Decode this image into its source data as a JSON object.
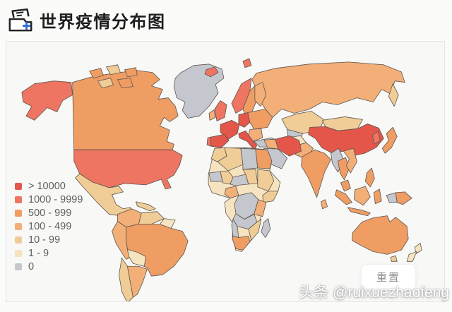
{
  "header": {
    "title": "世界疫情分布图",
    "icon": "archive-plus-icon",
    "icon_accent_color": "#2f6fd6"
  },
  "map_panel": {
    "ocean_color": "#f8f8f6",
    "panel_border_color": "#e6e6e2",
    "country_border_color": "#5b554f",
    "reset_label": "重置"
  },
  "watermark": "头条 @ruixuezhaofeng",
  "chart_data": {
    "type": "choropleth_map",
    "title": "世界疫情分布图",
    "legend_position": "middle-left",
    "bins": [
      {
        "label": "> 10000",
        "color": "#e4564a"
      },
      {
        "label": "1000 - 9999",
        "color": "#ee7561"
      },
      {
        "label": "500 - 999",
        "color": "#f09d64"
      },
      {
        "label": "100 - 499",
        "color": "#f3af78"
      },
      {
        "label": "10 - 99",
        "color": "#f0cd97"
      },
      {
        "label": "1 - 9",
        "color": "#f6e3c0"
      },
      {
        "label": "0",
        "color": "#c5c7cf"
      }
    ],
    "regions": [
      {
        "name": "russia",
        "level": 3
      },
      {
        "name": "kamchatka",
        "level": 4
      },
      {
        "name": "canada",
        "level": 2
      },
      {
        "name": "alaska",
        "level": 1
      },
      {
        "name": "usa",
        "level": 1
      },
      {
        "name": "greenland",
        "level": 6
      },
      {
        "name": "arctic_island_1",
        "level": 2
      },
      {
        "name": "arctic_island_2",
        "level": 4
      },
      {
        "name": "arctic_island_3",
        "level": 2
      },
      {
        "name": "arctic_island_4",
        "level": 4
      },
      {
        "name": "arctic_island_5",
        "level": 2
      },
      {
        "name": "iceland",
        "level": 1
      },
      {
        "name": "svalbard",
        "level": 1
      },
      {
        "name": "mexico",
        "level": 4
      },
      {
        "name": "central_america",
        "level": 4
      },
      {
        "name": "cuba",
        "level": 4
      },
      {
        "name": "colombia",
        "level": 3
      },
      {
        "name": "venezuela",
        "level": 4
      },
      {
        "name": "guyanas",
        "level": 5
      },
      {
        "name": "brazil",
        "level": 2
      },
      {
        "name": "peru",
        "level": 3
      },
      {
        "name": "bolivia",
        "level": 5
      },
      {
        "name": "chile",
        "level": 4
      },
      {
        "name": "argentina",
        "level": 3
      },
      {
        "name": "norway",
        "level": 1
      },
      {
        "name": "sweden",
        "level": 2
      },
      {
        "name": "finland",
        "level": 3
      },
      {
        "name": "uk",
        "level": 1
      },
      {
        "name": "ireland",
        "level": 3
      },
      {
        "name": "france",
        "level": 0
      },
      {
        "name": "spain",
        "level": 0
      },
      {
        "name": "portugal",
        "level": 1
      },
      {
        "name": "germany",
        "level": 0
      },
      {
        "name": "eastern_europe",
        "level": 2
      },
      {
        "name": "balkans",
        "level": 3
      },
      {
        "name": "italy",
        "level": 0
      },
      {
        "name": "turkey",
        "level": 6
      },
      {
        "name": "kazakhstan",
        "level": 4
      },
      {
        "name": "central_asia",
        "level": 6
      },
      {
        "name": "mongolia",
        "level": 4
      },
      {
        "name": "china",
        "level": 0
      },
      {
        "name": "south_korea",
        "level": 1
      },
      {
        "name": "japan",
        "level": 2
      },
      {
        "name": "pakistan",
        "level": 3
      },
      {
        "name": "afghanistan",
        "level": 5
      },
      {
        "name": "iran",
        "level": 0
      },
      {
        "name": "iraq_syria",
        "level": 3
      },
      {
        "name": "saudi_arabia",
        "level": 6
      },
      {
        "name": "india",
        "level": 2
      },
      {
        "name": "sri_lanka",
        "level": 3
      },
      {
        "name": "myanmar",
        "level": 6
      },
      {
        "name": "thailand",
        "level": 2
      },
      {
        "name": "vietnam",
        "level": 3
      },
      {
        "name": "malaysia",
        "level": 2
      },
      {
        "name": "sumatra",
        "level": 2
      },
      {
        "name": "java",
        "level": 2
      },
      {
        "name": "borneo",
        "level": 3
      },
      {
        "name": "sulawesi",
        "level": 2
      },
      {
        "name": "west_papua",
        "level": 6
      },
      {
        "name": "papua_new_guinea",
        "level": 2
      },
      {
        "name": "philippines",
        "level": 2
      },
      {
        "name": "africa_base",
        "level": 5
      },
      {
        "name": "morocco",
        "level": 4
      },
      {
        "name": "algeria",
        "level": 4
      },
      {
        "name": "libya",
        "level": 6
      },
      {
        "name": "egypt",
        "level": 2
      },
      {
        "name": "mauritania",
        "level": 6
      },
      {
        "name": "mali",
        "level": 4
      },
      {
        "name": "niger",
        "level": 6
      },
      {
        "name": "chad",
        "level": 4
      },
      {
        "name": "sudan",
        "level": 4
      },
      {
        "name": "nigeria",
        "level": 3
      },
      {
        "name": "ethiopia",
        "level": 4
      },
      {
        "name": "congo",
        "level": 6
      },
      {
        "name": "east_africa",
        "level": 3
      },
      {
        "name": "angola_zambia",
        "level": 6
      },
      {
        "name": "mozambique",
        "level": 4
      },
      {
        "name": "namibia",
        "level": 6
      },
      {
        "name": "south_africa",
        "level": 2
      },
      {
        "name": "madagascar",
        "level": 6
      },
      {
        "name": "australia",
        "level": 2
      },
      {
        "name": "tasmania",
        "level": 4
      },
      {
        "name": "new_zealand_north",
        "level": 5
      },
      {
        "name": "new_zealand_south",
        "level": 5
      }
    ]
  }
}
